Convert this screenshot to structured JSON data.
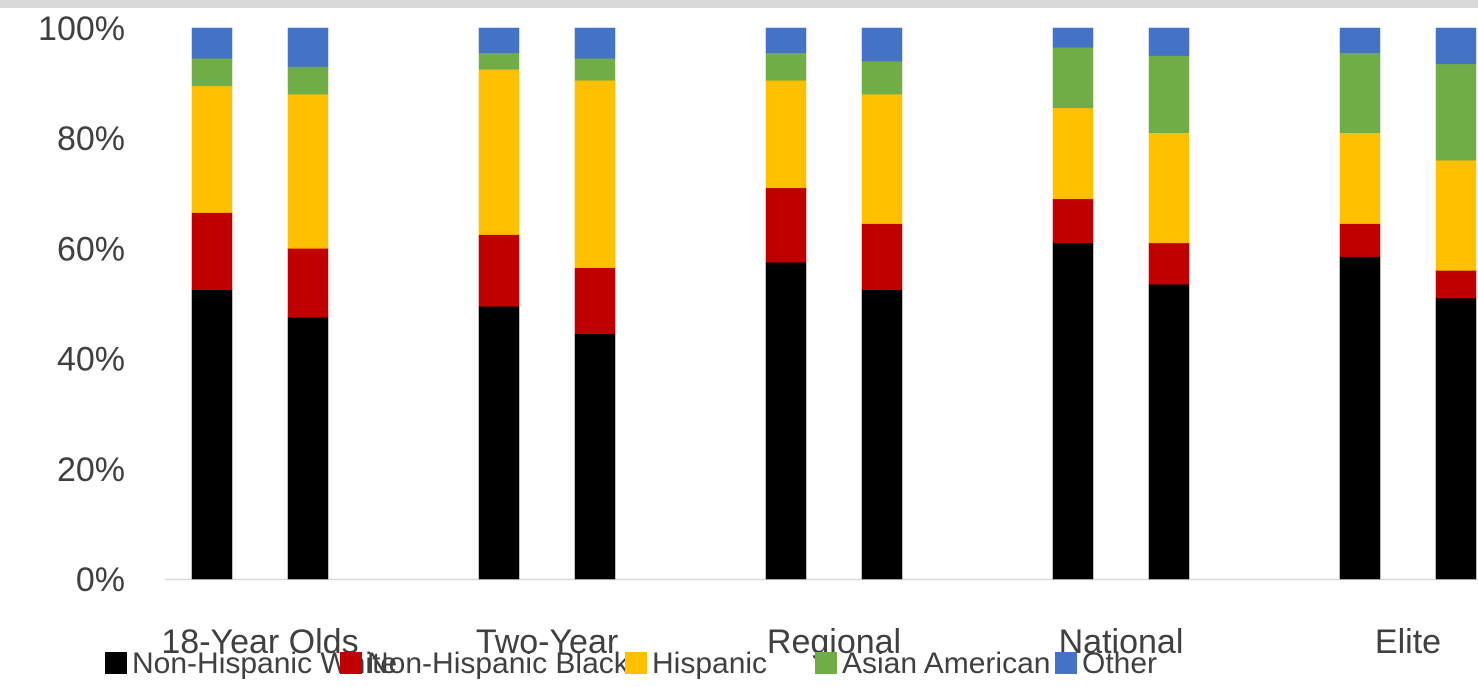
{
  "chart_data": {
    "type": "bar",
    "stacked": true,
    "percent": true,
    "title": "",
    "xlabel": "",
    "ylabel": "",
    "ylim": [
      0,
      100
    ],
    "y_ticks": [
      "0%",
      "20%",
      "40%",
      "60%",
      "80%",
      "100%"
    ],
    "grid": false,
    "legend_position": "bottom",
    "categories": [
      "18-Year Olds",
      "Two-Year",
      "Regional",
      "National",
      "Elite"
    ],
    "bars_per_category": 2,
    "series": [
      {
        "name": "Non-Hispanic White",
        "color": "#000000",
        "values": [
          [
            52.5,
            47.5
          ],
          [
            49.5,
            44.5
          ],
          [
            57.5,
            52.5
          ],
          [
            61.0,
            53.5
          ],
          [
            58.5,
            51.0
          ]
        ]
      },
      {
        "name": "Non-Hispanic Black",
        "color": "#c00000",
        "values": [
          [
            14.0,
            12.5
          ],
          [
            13.0,
            12.0
          ],
          [
            13.5,
            12.0
          ],
          [
            8.0,
            7.5
          ],
          [
            6.0,
            5.0
          ]
        ]
      },
      {
        "name": "Hispanic",
        "color": "#ffc000",
        "values": [
          [
            23.0,
            28.0
          ],
          [
            30.0,
            34.0
          ],
          [
            19.5,
            23.5
          ],
          [
            16.5,
            20.0
          ],
          [
            16.5,
            20.0
          ]
        ]
      },
      {
        "name": "Asian American",
        "color": "#70ad47",
        "values": [
          [
            5.0,
            5.0
          ],
          [
            3.0,
            4.0
          ],
          [
            5.0,
            6.0
          ],
          [
            11.0,
            14.0
          ],
          [
            14.5,
            17.5
          ]
        ]
      },
      {
        "name": "Other",
        "color": "#4472c4",
        "values": [
          [
            5.5,
            7.0
          ],
          [
            4.5,
            5.5
          ],
          [
            4.5,
            6.0
          ],
          [
            3.5,
            5.0
          ],
          [
            4.5,
            6.5
          ]
        ]
      }
    ]
  }
}
